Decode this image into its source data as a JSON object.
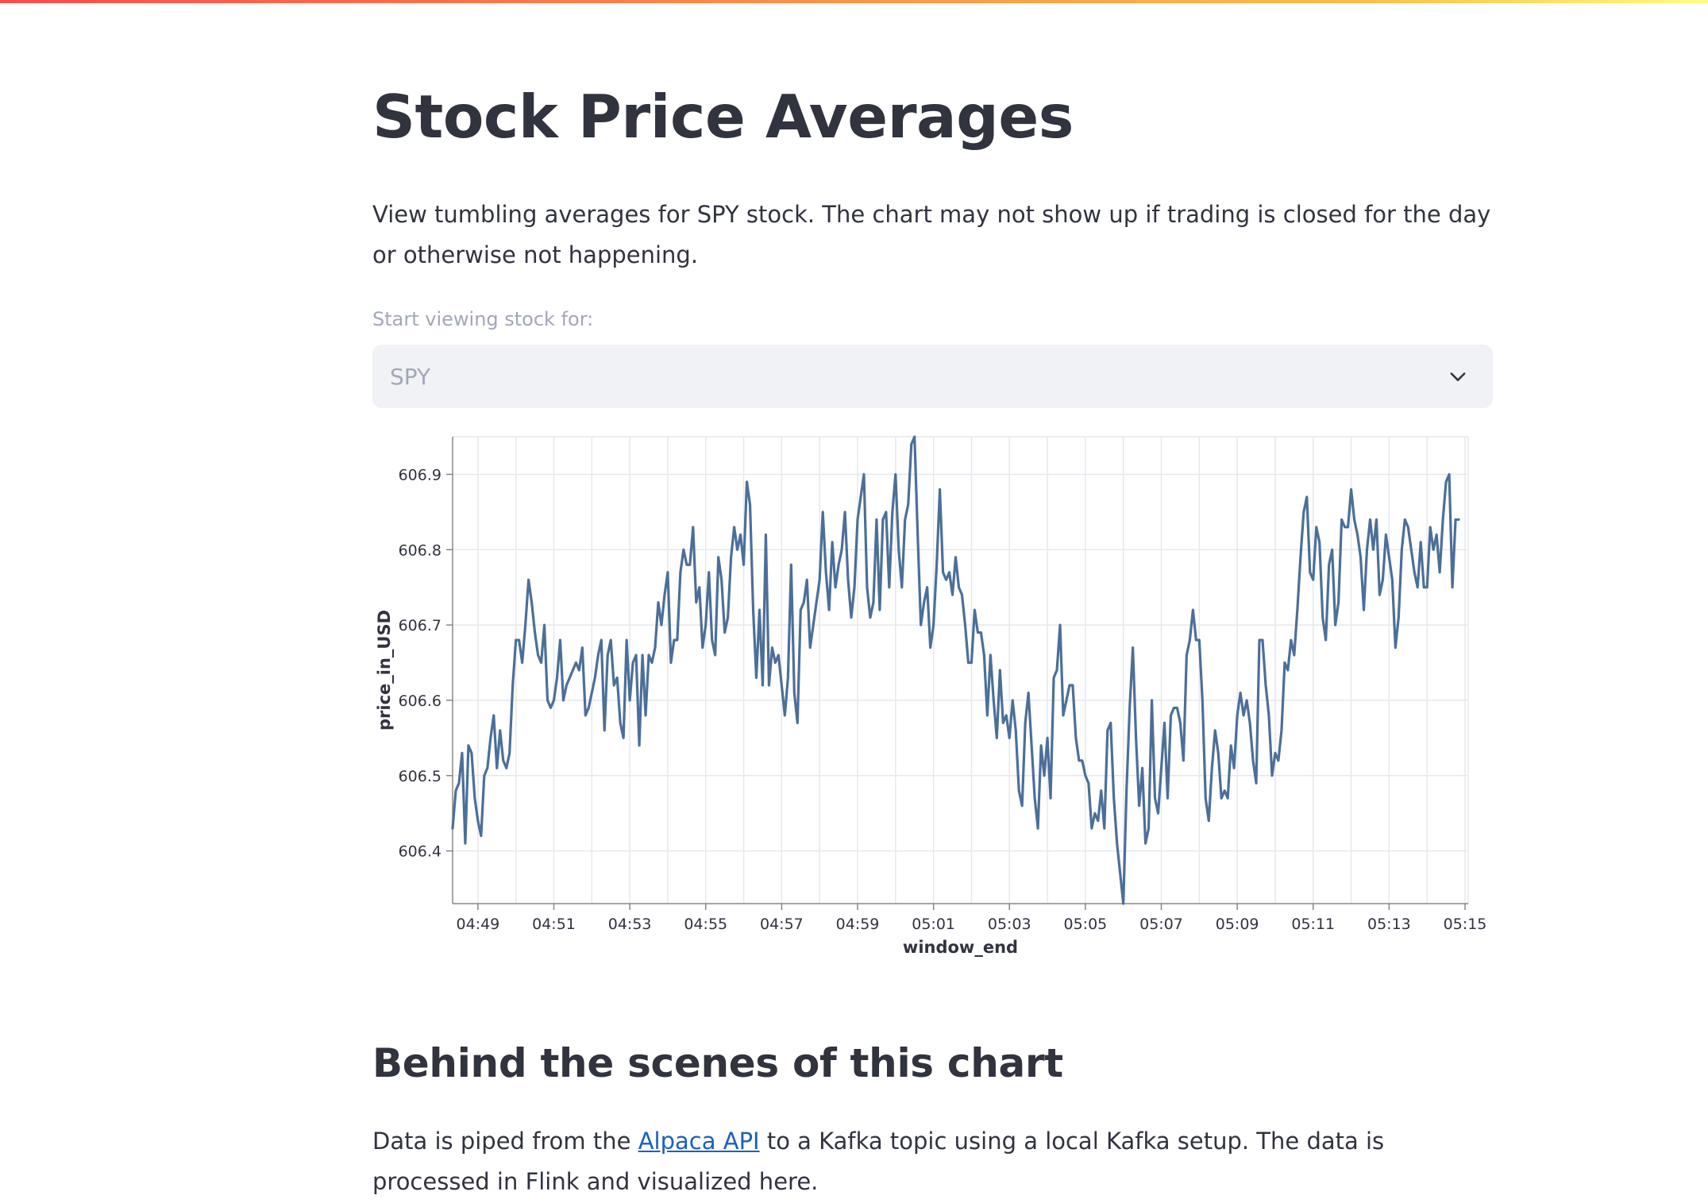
{
  "page": {
    "title": "Stock Price Averages",
    "description": "View tumbling averages for SPY stock. The chart may not show up if trading is closed for the day or otherwise not happening.",
    "select": {
      "label": "Start viewing stock for:",
      "value": "SPY",
      "icon": "chevron-down-icon"
    },
    "section_title": "Behind the scenes of this chart",
    "body": {
      "before_link": "Data is piped from the ",
      "link_text": "Alpaca API",
      "after_link": " to a Kafka topic using a local Kafka setup. The data is processed in Flink and visualized here."
    }
  },
  "colors": {
    "line": "#4c6f99",
    "grid": "#e6e8ee",
    "text": "#31333f",
    "select_bg": "#f0f2f6",
    "disabled_text": "#a3a8b8",
    "link": "#1c5fbf"
  },
  "chart_data": {
    "type": "line",
    "title": "",
    "xlabel": "window_end",
    "ylabel": "price_in_USD",
    "ylim": [
      606.33,
      606.95
    ],
    "xlim": [
      "04:48:20",
      "05:15:05"
    ],
    "grid": true,
    "x_ticks": [
      "04:49",
      "04:51",
      "04:53",
      "04:55",
      "04:57",
      "04:59",
      "05:01",
      "05:03",
      "05:05",
      "05:07",
      "05:09",
      "05:11",
      "05:13",
      "05:15"
    ],
    "y_ticks": [
      606.4,
      606.5,
      606.6,
      606.7,
      606.8,
      606.9
    ],
    "sample_interval_seconds": 5,
    "x_start": "04:48:20",
    "series": [
      {
        "values": [
          606.43,
          606.48,
          606.49,
          606.53,
          606.41,
          606.54,
          606.53,
          606.47,
          606.44,
          606.42,
          606.5,
          606.51,
          606.55,
          606.58,
          606.51,
          606.56,
          606.52,
          606.51,
          606.53,
          606.62,
          606.68,
          606.68,
          606.65,
          606.7,
          606.76,
          606.73,
          606.69,
          606.66,
          606.65,
          606.7,
          606.6,
          606.59,
          606.6,
          606.63,
          606.68,
          606.6,
          606.62,
          606.63,
          606.64,
          606.65,
          606.64,
          606.67,
          606.58,
          606.59,
          606.61,
          606.63,
          606.66,
          606.68,
          606.56,
          606.66,
          606.68,
          606.62,
          606.63,
          606.57,
          606.55,
          606.68,
          606.6,
          606.65,
          606.66,
          606.54,
          606.66,
          606.58,
          606.66,
          606.65,
          606.67,
          606.73,
          606.7,
          606.74,
          606.77,
          606.65,
          606.68,
          606.68,
          606.77,
          606.8,
          606.78,
          606.78,
          606.83,
          606.73,
          606.75,
          606.67,
          606.7,
          606.77,
          606.68,
          606.66,
          606.79,
          606.76,
          606.69,
          606.71,
          606.79,
          606.83,
          606.8,
          606.82,
          606.78,
          606.89,
          606.86,
          606.72,
          606.63,
          606.72,
          606.62,
          606.82,
          606.62,
          606.67,
          606.65,
          606.66,
          606.62,
          606.58,
          606.63,
          606.78,
          606.61,
          606.57,
          606.72,
          606.73,
          606.76,
          606.67,
          606.7,
          606.73,
          606.76,
          606.85,
          606.77,
          606.72,
          606.81,
          606.75,
          606.78,
          606.8,
          606.85,
          606.76,
          606.71,
          606.75,
          606.84,
          606.87,
          606.9,
          606.75,
          606.71,
          606.73,
          606.84,
          606.72,
          606.84,
          606.85,
          606.75,
          606.85,
          606.9,
          606.8,
          606.75,
          606.84,
          606.86,
          606.94,
          606.95,
          606.82,
          606.7,
          606.73,
          606.75,
          606.67,
          606.7,
          606.78,
          606.88,
          606.77,
          606.76,
          606.77,
          606.74,
          606.79,
          606.75,
          606.74,
          606.7,
          606.65,
          606.65,
          606.72,
          606.69,
          606.69,
          606.66,
          606.58,
          606.66,
          606.6,
          606.55,
          606.64,
          606.57,
          606.58,
          606.55,
          606.6,
          606.56,
          606.48,
          606.46,
          606.57,
          606.61,
          606.54,
          606.47,
          606.43,
          606.54,
          606.5,
          606.55,
          606.47,
          606.63,
          606.64,
          606.7,
          606.58,
          606.6,
          606.62,
          606.62,
          606.55,
          606.52,
          606.52,
          606.5,
          606.49,
          606.43,
          606.45,
          606.44,
          606.48,
          606.43,
          606.56,
          606.57,
          606.47,
          606.41,
          606.37,
          606.33,
          606.48,
          606.59,
          606.67,
          606.55,
          606.46,
          606.51,
          606.41,
          606.43,
          606.6,
          606.47,
          606.45,
          606.51,
          606.57,
          606.47,
          606.58,
          606.59,
          606.59,
          606.57,
          606.52,
          606.66,
          606.68,
          606.72,
          606.68,
          606.68,
          606.6,
          606.47,
          606.44,
          606.51,
          606.56,
          606.53,
          606.47,
          606.48,
          606.47,
          606.54,
          606.51,
          606.58,
          606.61,
          606.58,
          606.6,
          606.57,
          606.52,
          606.49,
          606.68,
          606.68,
          606.62,
          606.58,
          606.5,
          606.53,
          606.52,
          606.56,
          606.65,
          606.64,
          606.68,
          606.66,
          606.72,
          606.79,
          606.85,
          606.87,
          606.77,
          606.76,
          606.83,
          606.81,
          606.71,
          606.68,
          606.78,
          606.8,
          606.7,
          606.73,
          606.84,
          606.83,
          606.83,
          606.88,
          606.84,
          606.82,
          606.79,
          606.72,
          606.8,
          606.84,
          606.8,
          606.84,
          606.74,
          606.76,
          606.82,
          606.79,
          606.76,
          606.67,
          606.71,
          606.8,
          606.84,
          606.83,
          606.8,
          606.77,
          606.75,
          606.81,
          606.75,
          606.75,
          606.83,
          606.8,
          606.82,
          606.77,
          606.84,
          606.89,
          606.9,
          606.75,
          606.84,
          606.84
        ]
      }
    ]
  }
}
